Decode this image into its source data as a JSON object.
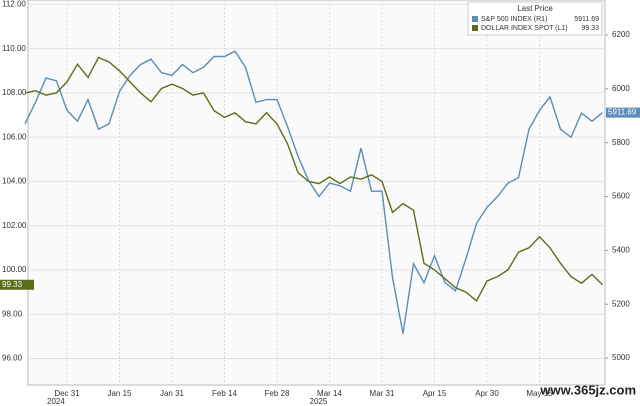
{
  "chart_data": {
    "type": "line",
    "legend_title": "Last Price",
    "legend": "top-right",
    "grid": true,
    "watermark": "www.365jz.com",
    "year_labels": [
      {
        "text": "2024",
        "category": 4
      },
      {
        "text": "2025",
        "category": 29
      }
    ],
    "categories": [
      null,
      null,
      null,
      null,
      "Dec 31",
      null,
      null,
      null,
      null,
      "Jan 15",
      null,
      null,
      null,
      null,
      "Jan 31",
      null,
      null,
      null,
      null,
      "Feb 14",
      null,
      null,
      null,
      null,
      "Feb 28",
      null,
      null,
      null,
      null,
      "Mar 14",
      null,
      null,
      null,
      null,
      "Mar 31",
      null,
      null,
      null,
      null,
      "Apr 15",
      null,
      null,
      null,
      null,
      "Apr 30",
      null,
      null,
      null,
      null,
      "May 15",
      null,
      null,
      null,
      null,
      null,
      null
    ],
    "ylim": [
      94.8,
      112.2
    ],
    "yticks": [
      {
        "value": 96,
        "label": "96.00"
      },
      {
        "value": 98,
        "label": "98.00"
      },
      {
        "value": 100,
        "label": "100.00"
      },
      {
        "value": 102,
        "label": "102.00"
      },
      {
        "value": 104,
        "label": "104.00"
      },
      {
        "value": 106,
        "label": "106.00"
      },
      {
        "value": 108,
        "label": "108.00"
      },
      {
        "value": 110,
        "label": "110.00"
      },
      {
        "value": 112,
        "label": "112.00"
      }
    ],
    "y2lim": [
      4900,
      6330
    ],
    "y2ticks": [
      5000,
      5200,
      5400,
      5600,
      5800,
      6000,
      6200
    ],
    "series": [
      {
        "name": "S&P 500 INDEX (R1)",
        "color": "#5b8db8",
        "axis": "y2",
        "values": [
          5870,
          5950,
          6040,
          6030,
          5920,
          5880,
          5960,
          5850,
          5870,
          5990,
          6050,
          6090,
          6110,
          6060,
          6050,
          6090,
          6060,
          6080,
          6120,
          6120,
          6140,
          6080,
          5950,
          5960,
          5960,
          5860,
          5750,
          5660,
          5600,
          5650,
          5640,
          5620,
          5780,
          5620,
          5620,
          5300,
          5090,
          5350,
          5280,
          5380,
          5280,
          5250,
          5370,
          5500,
          5560,
          5600,
          5650,
          5670,
          5850,
          5920,
          5970,
          5850,
          5820,
          5910,
          5880,
          5911.69
        ]
      },
      {
        "name": "DOLLAR INDEX SPOT (L1)",
        "color": "#5a6e1a",
        "axis": "y",
        "values": [
          108.0,
          108.1,
          107.9,
          108.0,
          108.5,
          109.3,
          108.7,
          109.6,
          109.4,
          109.0,
          108.5,
          108.0,
          107.6,
          108.2,
          108.4,
          108.2,
          107.9,
          108.0,
          107.2,
          106.9,
          107.1,
          106.7,
          106.6,
          107.1,
          106.6,
          105.7,
          104.4,
          104.0,
          103.9,
          104.2,
          103.9,
          104.2,
          104.1,
          104.3,
          104.0,
          102.6,
          103.0,
          102.7,
          100.3,
          100.0,
          99.6,
          99.2,
          99.0,
          98.6,
          99.5,
          99.7,
          100.0,
          100.8,
          101.0,
          101.5,
          101.0,
          100.3,
          99.7,
          99.4,
          99.8,
          99.33
        ]
      }
    ]
  }
}
